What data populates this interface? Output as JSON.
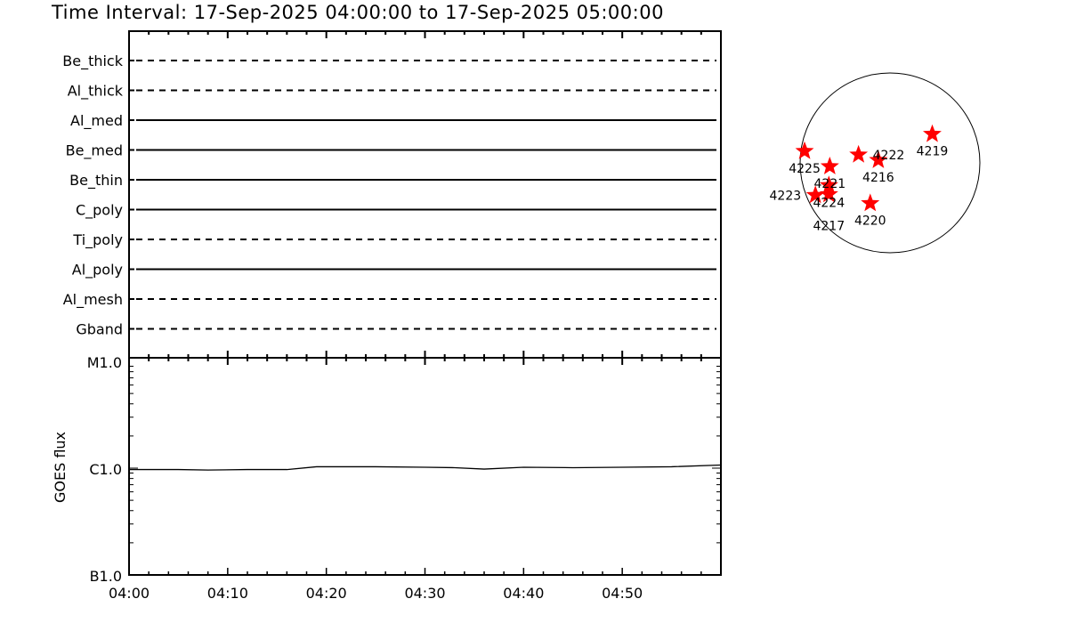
{
  "title": "Time Interval: 17-Sep-2025 04:00:00 to 17-Sep-2025 05:00:00",
  "chart_data": [
    {
      "type": "timeline",
      "title": "",
      "x_range": [
        "04:00",
        "05:00"
      ],
      "xticks": [
        "04:00",
        "04:10",
        "04:20",
        "04:30",
        "04:40",
        "04:50"
      ],
      "rows": [
        {
          "label": "Be_thick",
          "style": "dashed"
        },
        {
          "label": "Al_thick",
          "style": "dashed"
        },
        {
          "label": "Al_med",
          "style": "solid"
        },
        {
          "label": "Be_med",
          "style": "solid"
        },
        {
          "label": "Be_thin",
          "style": "solid"
        },
        {
          "label": "C_poly",
          "style": "solid"
        },
        {
          "label": "Ti_poly",
          "style": "dashed"
        },
        {
          "label": "Al_poly",
          "style": "solid"
        },
        {
          "label": "Al_mesh",
          "style": "dashed"
        },
        {
          "label": "Gband",
          "style": "dashed"
        }
      ]
    },
    {
      "type": "line",
      "ylabel": "GOES flux",
      "yscale": "log",
      "ylim": [
        1e-07,
        1e-05
      ],
      "yticks": [
        {
          "value": 1e-05,
          "label": "M1.0"
        },
        {
          "value": 1e-06,
          "label": "C1.0"
        },
        {
          "value": 1e-07,
          "label": "B1.0"
        }
      ],
      "xticks": [
        "04:00",
        "04:10",
        "04:20",
        "04:30",
        "04:40",
        "04:50"
      ],
      "x_minutes": [
        0,
        5,
        8,
        12,
        16,
        19,
        25,
        30,
        33,
        36,
        40,
        45,
        50,
        55,
        60
      ],
      "values": [
        9.7e-07,
        9.7e-07,
        9.6e-07,
        9.7e-07,
        9.7e-07,
        1.03e-06,
        1.03e-06,
        1.02e-06,
        1.01e-06,
        9.8e-07,
        1.02e-06,
        1.01e-06,
        1.02e-06,
        1.03e-06,
        1.07e-06
      ],
      "color": "#000000"
    },
    {
      "type": "scatter",
      "title": "",
      "units": "solar radii",
      "marker": "star",
      "color": "#ff0000",
      "points": [
        {
          "label": "4225",
          "x": -0.95,
          "y": 0.13
        },
        {
          "label": "4221",
          "x": -0.67,
          "y": -0.04
        },
        {
          "label": "4222",
          "x": -0.35,
          "y": 0.09
        },
        {
          "label": "4216",
          "x": -0.13,
          "y": 0.03
        },
        {
          "label": "4219",
          "x": 0.47,
          "y": 0.32
        },
        {
          "label": "4224",
          "x": -0.68,
          "y": -0.25
        },
        {
          "label": "4223",
          "x": -0.83,
          "y": -0.36
        },
        {
          "label": "4217",
          "x": -0.68,
          "y": -0.35
        },
        {
          "label": "4220",
          "x": -0.22,
          "y": -0.45
        }
      ]
    }
  ]
}
